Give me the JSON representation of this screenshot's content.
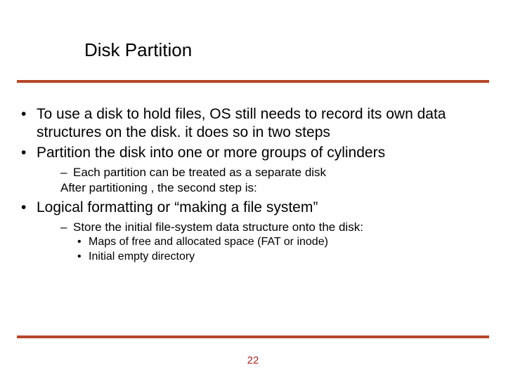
{
  "title": "Disk Partition",
  "rule_color": "#b7472a",
  "page_number": "22",
  "page_number_color": "#a52a2a",
  "bullets": {
    "b1": "To use a disk to hold files, OS still needs to record its own data structures on the disk. it does so in two steps",
    "b2": "Partition the disk into one or more groups of cylinders",
    "b2_sub1": "Each partition can be treated as a separate disk",
    "b2_sub2": "After partitioning , the second step is:",
    "b3": "Logical formatting or “making a file system”",
    "b3_sub1": "Store the initial file-system data structure onto the disk:",
    "b3_sub1_a": "Maps of free and allocated space (FAT or inode)",
    "b3_sub1_b": "Initial empty directory"
  }
}
